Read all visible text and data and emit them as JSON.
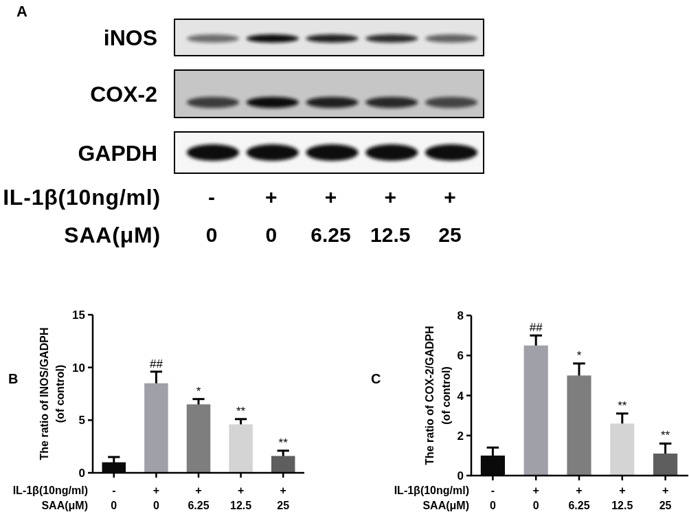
{
  "chart_data": [
    {
      "type": "other",
      "title": "A",
      "categories": [
        "-\n0",
        "+\n0",
        "+\n6.25",
        "+\n12.5",
        "+\n25"
      ],
      "y_categories": [
        "iNOS",
        "COX-2",
        "GAPDH"
      ],
      "annotations": [
        "IL-1β(10ng/ml)",
        "SAA(μM)"
      ]
    },
    {
      "type": "bar",
      "title": "B",
      "ylabel": "The ratio of INOS/GADPH\n(of control)",
      "categories": [
        "-\n0",
        "+\n0",
        "+\n6.25",
        "+\n12.5",
        "+\n25"
      ],
      "values": [
        1.0,
        8.5,
        6.5,
        4.6,
        1.6
      ],
      "colors": [
        "#0a0a0a",
        "#a0a0a8",
        "#7e7e7e",
        "#d4d4d4",
        "#5e5e5e"
      ],
      "errors": [
        0.5,
        1.1,
        0.5,
        0.5,
        0.5
      ],
      "ylim": [
        0,
        15
      ],
      "yticks": [
        0,
        5,
        10,
        15
      ],
      "annotations": [
        "IL-1β(10ng/ml)",
        "SAA(μM)",
        {
          "text": "##",
          "x": "+\n0",
          "y": 9.6
        },
        {
          "text": "*",
          "x": "+\n6.25",
          "y": 7.0
        },
        {
          "text": "**",
          "x": "+\n12.5",
          "y": 5.1
        },
        {
          "text": "**",
          "x": "+\n25",
          "y": 2.1
        }
      ]
    },
    {
      "type": "bar",
      "title": "C",
      "ylabel": "The ratio of COX-2/GADPH\n(of control)",
      "categories": [
        "-\n0",
        "+\n0",
        "+\n6.25",
        "+\n12.5",
        "+\n25"
      ],
      "values": [
        1.0,
        6.5,
        5.0,
        2.6,
        1.1
      ],
      "colors": [
        "#0a0a0a",
        "#a0a0a8",
        "#7e7e7e",
        "#d4d4d4",
        "#5e5e5e"
      ],
      "errors": [
        0.4,
        0.5,
        0.6,
        0.5,
        0.5
      ],
      "ylim": [
        0,
        8
      ],
      "yticks": [
        0,
        2,
        4,
        6,
        8
      ],
      "annotations": [
        "IL-1β(10ng/ml)",
        "SAA(μM)",
        {
          "text": "##",
          "x": "+\n0",
          "y": 7.0
        },
        {
          "text": "*",
          "x": "+\n6.25",
          "y": 5.6
        },
        {
          "text": "**",
          "x": "+\n12.5",
          "y": 3.1
        },
        {
          "text": "**",
          "x": "+\n25",
          "y": 1.6
        }
      ]
    }
  ]
}
